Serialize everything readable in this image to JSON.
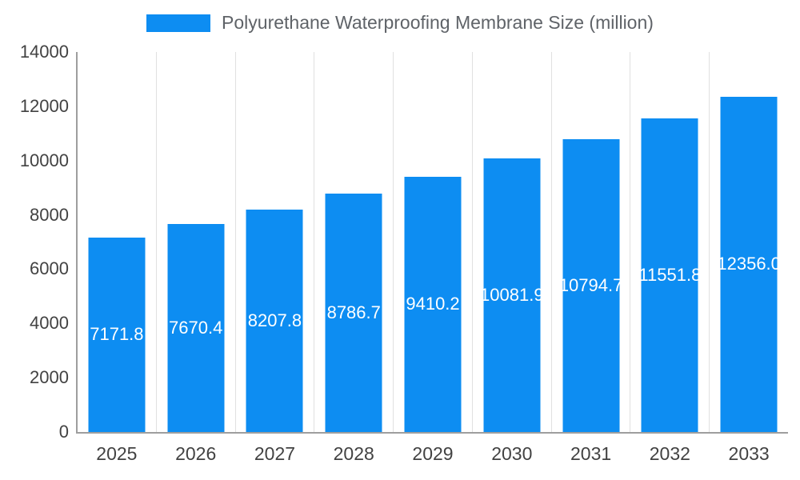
{
  "chart_data": {
    "type": "bar",
    "title": "Polyurethane Waterproofing Membrane Size (million)",
    "categories": [
      "2025",
      "2026",
      "2027",
      "2028",
      "2029",
      "2030",
      "2031",
      "2032",
      "2033"
    ],
    "values": [
      7171.8,
      7670.4,
      8207.8,
      8786.7,
      9410.2,
      10081.9,
      10794.7,
      11551.8,
      12356.0
    ],
    "value_labels": [
      "7171.8",
      "7670.4",
      "8207.8",
      "8786.7",
      "9410.2",
      "10081.9",
      "10794.7",
      "11551.8",
      "12356.0"
    ],
    "xlabel": "",
    "ylabel": "",
    "ylim": [
      0,
      14000
    ],
    "ytick_step": 2000,
    "legend_position": "top",
    "grid": "vertical",
    "value_label_position": "inside-center"
  },
  "colors": {
    "bar": "#0d8df2",
    "axis_text": "#424242",
    "legend_text": "#5f6368",
    "grid_line": "#e0e0e0",
    "axis_line": "#9e9e9e",
    "label_text": "#ffffff"
  }
}
